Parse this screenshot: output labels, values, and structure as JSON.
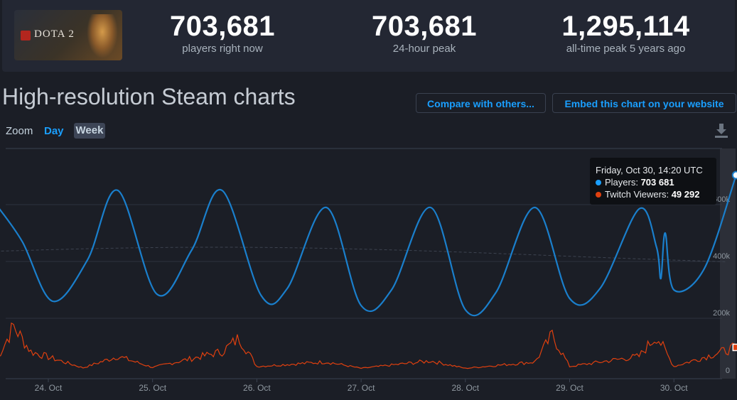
{
  "game": {
    "logo_text": "DOTA 2"
  },
  "stats": [
    {
      "value": "703,681",
      "label": "players right now"
    },
    {
      "value": "703,681",
      "label": "24-hour peak"
    },
    {
      "value": "1,295,114",
      "label": "all-time peak 5 years ago"
    }
  ],
  "section": {
    "title": "High-resolution Steam charts"
  },
  "buttons": {
    "compare": "Compare with others...",
    "embed": "Embed this chart on your website"
  },
  "zoom": {
    "label": "Zoom",
    "day": "Day",
    "week": "Week",
    "selected": "Week"
  },
  "colors": {
    "players": "#1a7fcc",
    "twitch": "#e0400f",
    "accent": "#1a9fff"
  },
  "tooltip": {
    "title": "Friday, Oct 30, 14:20 UTC",
    "players_label": "Players: ",
    "players_value": "703 681",
    "twitch_label": "Twitch Viewers: ",
    "twitch_value": "49 292"
  },
  "chart_data": {
    "type": "line",
    "x_ticks": [
      "24. Oct",
      "25. Oct",
      "26. Oct",
      "27. Oct",
      "28. Oct",
      "29. Oct",
      "30. Oct"
    ],
    "y_ticks": [
      "200k",
      "400k",
      "600k"
    ],
    "series": [
      {
        "name": "Players",
        "points": [
          [
            "Oct 23 12:00",
            600000
          ],
          [
            "Oct 23 18:00",
            470000
          ],
          [
            "Oct 24 01:00",
            260000
          ],
          [
            "Oct 24 09:00",
            405000
          ],
          [
            "Oct 24 16:00",
            650000
          ],
          [
            "Oct 25 01:00",
            285000
          ],
          [
            "Oct 25 09:00",
            440000
          ],
          [
            "Oct 25 16:00",
            650000
          ],
          [
            "Oct 26 01:00",
            280000
          ],
          [
            "Oct 26 07:00",
            305000
          ],
          [
            "Oct 26 16:00",
            590000
          ],
          [
            "Oct 27 00:00",
            245000
          ],
          [
            "Oct 27 07:00",
            300000
          ],
          [
            "Oct 27 16:00",
            590000
          ],
          [
            "Oct 28 00:00",
            230000
          ],
          [
            "Oct 28 07:00",
            290000
          ],
          [
            "Oct 28 16:00",
            590000
          ],
          [
            "Oct 29 00:00",
            270000
          ],
          [
            "Oct 29 07:00",
            305000
          ],
          [
            "Oct 29 16:00",
            585000
          ],
          [
            "Oct 29 20:00",
            450000
          ],
          [
            "Oct 29 21:00",
            340000
          ],
          [
            "Oct 29 22:00",
            500000
          ],
          [
            "Oct 30 00:00",
            300000
          ],
          [
            "Oct 30 07:00",
            375000
          ],
          [
            "Oct 30 14:20",
            703681
          ]
        ]
      },
      {
        "name": "Twitch Viewers",
        "points": [
          [
            "Oct 23 12:00",
            20000
          ],
          [
            "Oct 23 16:00",
            95000
          ],
          [
            "Oct 23 20:00",
            40000
          ],
          [
            "Oct 24 08:00",
            5000
          ],
          [
            "Oct 24 16:00",
            30000
          ],
          [
            "Oct 25 00:00",
            6000
          ],
          [
            "Oct 25 16:00",
            40000
          ],
          [
            "Oct 25 20:00",
            70000
          ],
          [
            "Oct 26 00:00",
            8000
          ],
          [
            "Oct 26 16:00",
            18000
          ],
          [
            "Oct 27 00:00",
            4000
          ],
          [
            "Oct 27 16:00",
            20000
          ],
          [
            "Oct 28 00:00",
            4000
          ],
          [
            "Oct 28 16:00",
            18000
          ],
          [
            "Oct 28 20:00",
            75000
          ],
          [
            "Oct 29 00:00",
            8000
          ],
          [
            "Oct 29 16:00",
            30000
          ],
          [
            "Oct 29 20:00",
            75000
          ],
          [
            "Oct 30 00:00",
            8000
          ],
          [
            "Oct 30 14:20",
            49292
          ]
        ]
      }
    ],
    "grid": true,
    "legend": "none"
  }
}
